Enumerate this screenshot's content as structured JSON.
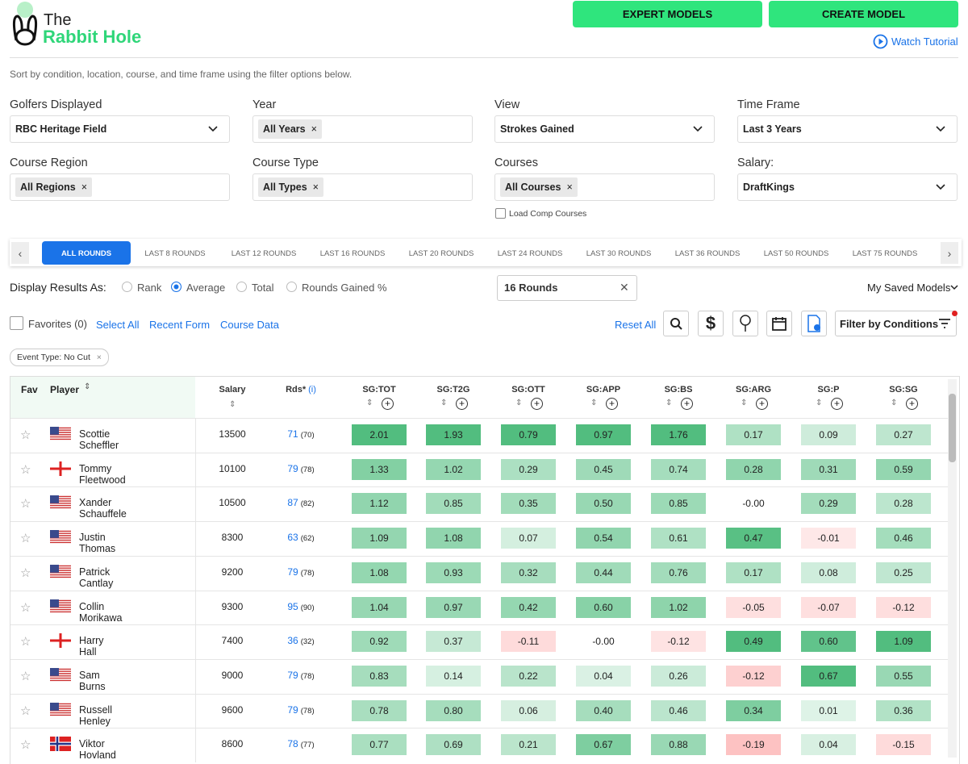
{
  "header": {
    "logo_top": "The",
    "logo_bottom": "Rabbit Hole",
    "buttons": [
      "EXPERT MODELS",
      "CREATE MODEL"
    ],
    "tutorial": "Watch Tutorial"
  },
  "intro": "Sort by condition, location, course, and time frame using the filter options below.",
  "filters": [
    {
      "label": "Golfers Displayed",
      "value": "RBC Heritage Field",
      "kind": "select"
    },
    {
      "label": "Year",
      "value": "All Years",
      "kind": "chip"
    },
    {
      "label": "View",
      "value": "Strokes Gained",
      "kind": "select"
    },
    {
      "label": "Time Frame",
      "value": "Last 3 Years",
      "kind": "select"
    },
    {
      "label": "Course Region",
      "value": "All Regions",
      "kind": "chip"
    },
    {
      "label": "Course Type",
      "value": "All Types",
      "kind": "chip"
    },
    {
      "label": "Courses",
      "value": "All Courses",
      "kind": "chip"
    },
    {
      "label": "Salary:",
      "value": "DraftKings",
      "kind": "select"
    }
  ],
  "load_comp": "Load Comp Courses",
  "tabs": [
    "ALL ROUNDS",
    "LAST 8 ROUNDS",
    "LAST 12 ROUNDS",
    "LAST 16 ROUNDS",
    "LAST 20 ROUNDS",
    "LAST 24 ROUNDS",
    "LAST 30 ROUNDS",
    "LAST 36 ROUNDS",
    "LAST 50 ROUNDS",
    "LAST 75 ROUNDS"
  ],
  "active_tab": 0,
  "display": {
    "label": "Display Results As:",
    "options": [
      "Rank",
      "Average",
      "Total",
      "Rounds Gained %"
    ],
    "selected": 1,
    "rounds_input": "16 Rounds",
    "saved": "My Saved Models"
  },
  "toolbar": {
    "favorites": "Favorites (0)",
    "links": [
      "Select All",
      "Recent Form",
      "Course Data"
    ],
    "reset": "Reset All",
    "filter": "Filter by Conditions"
  },
  "tag": "Event Type: No Cut",
  "table": {
    "columns": [
      "Fav",
      "Player",
      "Salary",
      "Rds*",
      "SG:TOT",
      "SG:T2G",
      "SG:OTT",
      "SG:APP",
      "SG:BS",
      "SG:ARG",
      "SG:P",
      "SG:SG"
    ],
    "rds_info": "(i)",
    "rows": [
      {
        "flag": "US",
        "player": "Scottie Scheffler",
        "salary": 13500,
        "rds": 71,
        "rds_sub": "(70)",
        "sg": [
          "2.01",
          "1.93",
          "0.79",
          "0.97",
          "1.76",
          "0.17",
          "0.09",
          "0.27"
        ]
      },
      {
        "flag": "ENG",
        "player": "Tommy Fleetwood",
        "salary": 10100,
        "rds": 79,
        "rds_sub": "(78)",
        "sg": [
          "1.33",
          "1.02",
          "0.29",
          "0.45",
          "0.74",
          "0.28",
          "0.31",
          "0.59"
        ]
      },
      {
        "flag": "US",
        "player": "Xander Schauffele",
        "salary": 10500,
        "rds": 87,
        "rds_sub": "(82)",
        "sg": [
          "1.12",
          "0.85",
          "0.35",
          "0.50",
          "0.85",
          "-0.00",
          "0.29",
          "0.28"
        ]
      },
      {
        "flag": "US",
        "player": "Justin Thomas",
        "salary": 8300,
        "rds": 63,
        "rds_sub": "(62)",
        "sg": [
          "1.09",
          "1.08",
          "0.07",
          "0.54",
          "0.61",
          "0.47",
          "-0.01",
          "0.46"
        ]
      },
      {
        "flag": "US",
        "player": "Patrick Cantlay",
        "salary": 9200,
        "rds": 79,
        "rds_sub": "(78)",
        "sg": [
          "1.08",
          "0.93",
          "0.32",
          "0.44",
          "0.76",
          "0.17",
          "0.08",
          "0.25"
        ]
      },
      {
        "flag": "US",
        "player": "Collin Morikawa",
        "salary": 9300,
        "rds": 95,
        "rds_sub": "(90)",
        "sg": [
          "1.04",
          "0.97",
          "0.42",
          "0.60",
          "1.02",
          "-0.05",
          "-0.07",
          "-0.12"
        ]
      },
      {
        "flag": "ENG",
        "player": "Harry Hall",
        "salary": 7400,
        "rds": 36,
        "rds_sub": "(32)",
        "sg": [
          "0.92",
          "0.37",
          "-0.11",
          "-0.00",
          "-0.12",
          "0.49",
          "0.60",
          "1.09"
        ]
      },
      {
        "flag": "US",
        "player": "Sam Burns",
        "salary": 9000,
        "rds": 79,
        "rds_sub": "(78)",
        "sg": [
          "0.83",
          "0.14",
          "0.22",
          "0.04",
          "0.26",
          "-0.12",
          "0.67",
          "0.55"
        ]
      },
      {
        "flag": "US",
        "player": "Russell Henley",
        "salary": 9600,
        "rds": 79,
        "rds_sub": "(78)",
        "sg": [
          "0.78",
          "0.80",
          "0.06",
          "0.40",
          "0.46",
          "0.34",
          "0.01",
          "0.36"
        ]
      },
      {
        "flag": "NOR",
        "player": "Viktor Hovland",
        "salary": 8600,
        "rds": 78,
        "rds_sub": "(77)",
        "sg": [
          "0.77",
          "0.69",
          "0.21",
          "0.67",
          "0.88",
          "-0.19",
          "0.04",
          "-0.15"
        ]
      }
    ]
  }
}
